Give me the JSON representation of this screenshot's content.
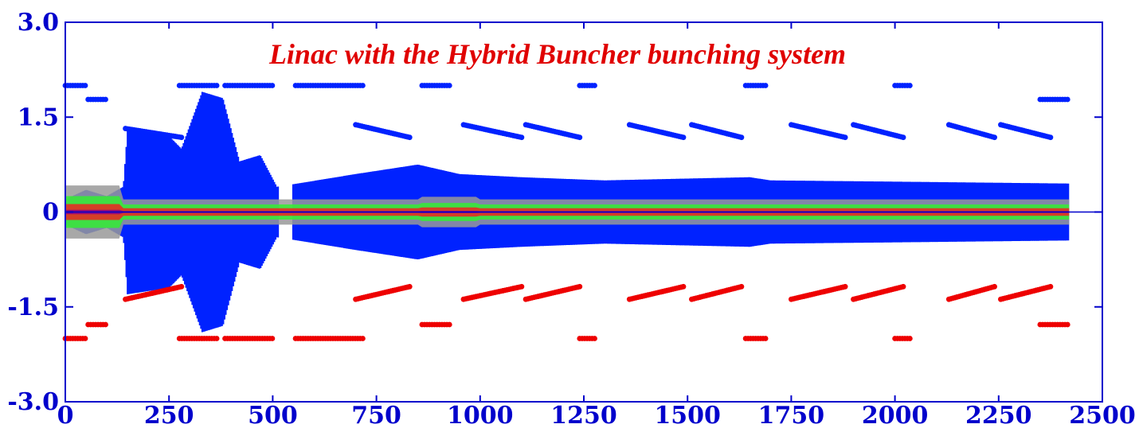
{
  "chart_data": {
    "type": "scatter",
    "title": "Linac with the Hybrid Buncher bunching system",
    "xlabel": "",
    "ylabel": "",
    "xlim": [
      0,
      2500
    ],
    "ylim": [
      -3.0,
      3.0
    ],
    "x_ticks": [
      0,
      250,
      500,
      750,
      1000,
      1250,
      1500,
      1750,
      2000,
      2250,
      2500
    ],
    "x_tick_labels": [
      "0",
      "250",
      "500",
      "750",
      "1000",
      "1250",
      "1500",
      "1750",
      "2000",
      "2250",
      "2500"
    ],
    "y_ticks": [
      3.0,
      1.5,
      0,
      -1.5,
      -3.0
    ],
    "y_tick_labels": [
      "3.0",
      "1.5",
      "0",
      "-1.5",
      "-3.0"
    ],
    "grid": false,
    "colors": {
      "frame": "#0000cc",
      "envelope": "#0022ff",
      "core_outer": "#999999",
      "core_mid": "#33ee33",
      "core_inner": "#ee2222",
      "center": "#880088",
      "upper_markers": "#0022ff",
      "lower_markers": "#ee0000",
      "title": "#e00000"
    },
    "series": [
      {
        "name": "upper",
        "plateaus": [
          {
            "x": [
              0,
              50
            ],
            "y": 2.0
          },
          {
            "x": [
              55,
              100
            ],
            "y": 1.78
          },
          {
            "x": [
              275,
              370
            ],
            "y": 2.0
          },
          {
            "x": [
              385,
              500
            ],
            "y": 2.0
          },
          {
            "x": [
              555,
              720
            ],
            "y": 2.0
          },
          {
            "x": [
              860,
              930
            ],
            "y": 2.0
          },
          {
            "x": [
              1240,
              1280
            ],
            "y": 2.0
          },
          {
            "x": [
              1640,
              1690
            ],
            "y": 2.0
          },
          {
            "x": [
              2000,
              2040
            ],
            "y": 2.0
          },
          {
            "x": [
              2350,
              2420
            ],
            "y": 1.78
          }
        ],
        "ramps": [
          {
            "x0": 145,
            "y0": 1.32,
            "x1": 280,
            "y1": 1.18
          },
          {
            "x0": 700,
            "y0": 1.38,
            "x1": 830,
            "y1": 1.18
          },
          {
            "x0": 960,
            "y0": 1.38,
            "x1": 1100,
            "y1": 1.18
          },
          {
            "x0": 1110,
            "y0": 1.38,
            "x1": 1240,
            "y1": 1.18
          },
          {
            "x0": 1360,
            "y0": 1.38,
            "x1": 1490,
            "y1": 1.18
          },
          {
            "x0": 1510,
            "y0": 1.38,
            "x1": 1630,
            "y1": 1.18
          },
          {
            "x0": 1750,
            "y0": 1.38,
            "x1": 1880,
            "y1": 1.18
          },
          {
            "x0": 1900,
            "y0": 1.38,
            "x1": 2020,
            "y1": 1.18
          },
          {
            "x0": 2130,
            "y0": 1.38,
            "x1": 2240,
            "y1": 1.18
          },
          {
            "x0": 2255,
            "y0": 1.38,
            "x1": 2375,
            "y1": 1.18
          }
        ]
      },
      {
        "name": "lower",
        "plateaus": [
          {
            "x": [
              0,
              50
            ],
            "y": -2.0
          },
          {
            "x": [
              55,
              100
            ],
            "y": -1.78
          },
          {
            "x": [
              275,
              370
            ],
            "y": -2.0
          },
          {
            "x": [
              385,
              500
            ],
            "y": -2.0
          },
          {
            "x": [
              555,
              720
            ],
            "y": -2.0
          },
          {
            "x": [
              860,
              930
            ],
            "y": -1.78
          },
          {
            "x": [
              1240,
              1280
            ],
            "y": -2.0
          },
          {
            "x": [
              1640,
              1690
            ],
            "y": -2.0
          },
          {
            "x": [
              2000,
              2040
            ],
            "y": -2.0
          },
          {
            "x": [
              2350,
              2420
            ],
            "y": -1.78
          }
        ],
        "ramps": [
          {
            "x0": 145,
            "y0": -1.38,
            "x1": 280,
            "y1": -1.18
          },
          {
            "x0": 700,
            "y0": -1.38,
            "x1": 830,
            "y1": -1.18
          },
          {
            "x0": 960,
            "y0": -1.38,
            "x1": 1100,
            "y1": -1.18
          },
          {
            "x0": 1110,
            "y0": -1.38,
            "x1": 1240,
            "y1": -1.18
          },
          {
            "x0": 1360,
            "y0": -1.38,
            "x1": 1490,
            "y1": -1.18
          },
          {
            "x0": 1510,
            "y0": -1.38,
            "x1": 1630,
            "y1": -1.18
          },
          {
            "x0": 1750,
            "y0": -1.38,
            "x1": 1880,
            "y1": -1.18
          },
          {
            "x0": 1900,
            "y0": -1.38,
            "x1": 2020,
            "y1": -1.18
          },
          {
            "x0": 2130,
            "y0": -1.38,
            "x1": 2240,
            "y1": -1.18
          },
          {
            "x0": 2255,
            "y0": -1.38,
            "x1": 2375,
            "y1": -1.18
          }
        ]
      },
      {
        "name": "envelope",
        "points": [
          [
            0,
            0.2
          ],
          [
            50,
            0.35
          ],
          [
            100,
            0.25
          ],
          [
            140,
            0.4
          ],
          [
            150,
            1.3
          ],
          [
            250,
            1.2
          ],
          [
            280,
            1.0
          ],
          [
            330,
            1.9
          ],
          [
            380,
            1.8
          ],
          [
            420,
            0.8
          ],
          [
            470,
            0.9
          ],
          [
            510,
            0.4
          ],
          [
            560,
            0.45
          ],
          [
            700,
            0.6
          ],
          [
            850,
            0.75
          ],
          [
            950,
            0.6
          ],
          [
            1100,
            0.55
          ],
          [
            1300,
            0.5
          ],
          [
            1650,
            0.55
          ],
          [
            1700,
            0.5
          ],
          [
            2000,
            0.48
          ],
          [
            2420,
            0.45
          ]
        ]
      }
    ]
  }
}
